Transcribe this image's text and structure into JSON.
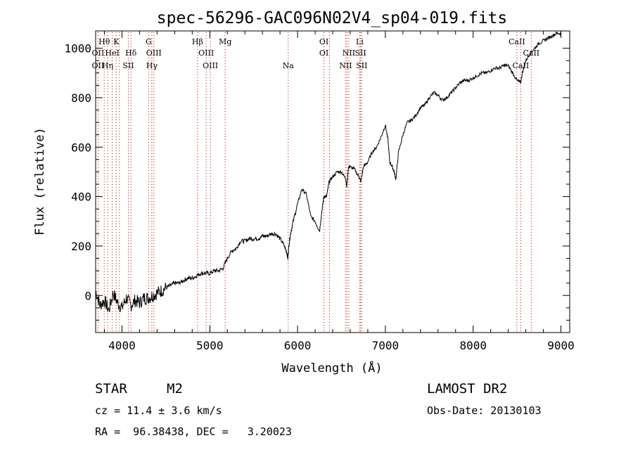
{
  "chart_data": {
    "type": "line",
    "title": "spec-56296-GAC096N02V4_sp04-019.fits",
    "xlabel": "Wavelength (Å)",
    "ylabel": "Flux (relative)",
    "xlim": [
      3700,
      9100
    ],
    "ylim": [
      -150,
      1070
    ],
    "xticks": [
      4000,
      5000,
      6000,
      7000,
      8000,
      9000
    ],
    "yticks": [
      0,
      200,
      400,
      600,
      800,
      1000
    ],
    "grid": false,
    "series": [
      {
        "values_note": "",
        "x": [
          3700,
          3750,
          3800,
          3850,
          3900,
          3950,
          4000,
          4050,
          4100,
          4150,
          4200,
          4250,
          4300,
          4350,
          4400,
          4450,
          4500,
          4550,
          4600,
          4650,
          4700,
          4750,
          4800,
          4850,
          4900,
          4950,
          5000,
          5050,
          5100,
          5150,
          5200,
          5250,
          5300,
          5350,
          5400,
          5450,
          5500,
          5550,
          5600,
          5650,
          5700,
          5750,
          5800,
          5850,
          5880,
          5890,
          5900,
          5920,
          5950,
          6000,
          6050,
          6100,
          6150,
          6200,
          6250,
          6280,
          6300,
          6330,
          6360,
          6400,
          6450,
          6500,
          6550,
          6560,
          6580,
          6600,
          6650,
          6700,
          6720,
          6750,
          6800,
          6850,
          6900,
          6950,
          7000,
          7030,
          7050,
          7080,
          7100,
          7120,
          7150,
          7200,
          7250,
          7300,
          7350,
          7400,
          7450,
          7500,
          7550,
          7600,
          7650,
          7700,
          7750,
          7800,
          7850,
          7900,
          7950,
          8000,
          8050,
          8100,
          8150,
          8200,
          8250,
          8300,
          8350,
          8400,
          8450,
          8500,
          8540,
          8560,
          8600,
          8650,
          8700,
          8750,
          8800,
          8850,
          8900,
          8950,
          9000
        ],
        "y": [
          20,
          -40,
          -20,
          -60,
          10,
          -30,
          -50,
          -10,
          -40,
          -20,
          -30,
          -10,
          -10,
          0,
          10,
          20,
          30,
          40,
          50,
          50,
          60,
          70,
          70,
          80,
          90,
          90,
          90,
          100,
          100,
          110,
          150,
          180,
          190,
          220,
          220,
          230,
          230,
          230,
          240,
          240,
          250,
          250,
          230,
          200,
          170,
          150,
          200,
          250,
          300,
          370,
          430,
          410,
          320,
          300,
          260,
          350,
          400,
          400,
          460,
          480,
          500,
          500,
          470,
          440,
          520,
          520,
          510,
          480,
          460,
          520,
          540,
          580,
          600,
          640,
          690,
          630,
          540,
          520,
          500,
          470,
          580,
          650,
          700,
          710,
          730,
          760,
          770,
          800,
          820,
          810,
          790,
          800,
          820,
          840,
          860,
          870,
          870,
          880,
          890,
          900,
          900,
          910,
          920,
          920,
          930,
          930,
          900,
          870,
          860,
          900,
          950,
          980,
          1000,
          1020,
          1030,
          1040,
          1050,
          1060,
          1060
        ]
      }
    ],
    "line_labels_top": [
      {
        "text": "Hθ",
        "x": 3798
      },
      {
        "text": "K",
        "x": 3934
      },
      {
        "text": "G",
        "x": 4304
      },
      {
        "text": "Hβ",
        "x": 4861
      },
      {
        "text": "Mg",
        "x": 5175
      },
      {
        "text": "OI",
        "x": 6300
      },
      {
        "text": "Li",
        "x": 6708
      },
      {
        "text": "CaII",
        "x": 8498
      }
    ],
    "line_labels_mid": [
      {
        "text": "OII",
        "x": 3727
      },
      {
        "text": "HeI",
        "x": 3889
      },
      {
        "text": "Hδ",
        "x": 4102
      },
      {
        "text": "OIII",
        "x": 4363
      },
      {
        "text": "OIII",
        "x": 4959
      },
      {
        "text": "OI",
        "x": 6300
      },
      {
        "text": "NII",
        "x": 6584
      },
      {
        "text": "SII",
        "x": 6717
      },
      {
        "text": "CaII",
        "x": 8662
      }
    ],
    "line_labels_low": [
      {
        "text": "OII",
        "x": 3727
      },
      {
        "text": "Hη",
        "x": 3835
      },
      {
        "text": "SII",
        "x": 4072
      },
      {
        "text": "Hγ",
        "x": 4340
      },
      {
        "text": "OIII",
        "x": 5007
      },
      {
        "text": "Na",
        "x": 5893
      },
      {
        "text": "NII",
        "x": 6548
      },
      {
        "text": "SII",
        "x": 6731
      },
      {
        "text": "CaII",
        "x": 8542
      }
    ],
    "marker_lines": [
      3727,
      3798,
      3835,
      3889,
      3934,
      3970,
      4072,
      4102,
      4304,
      4340,
      4363,
      4861,
      4959,
      5007,
      5175,
      5893,
      6300,
      6364,
      6548,
      6563,
      6584,
      6708,
      6717,
      6731,
      8498,
      8542,
      8662
    ],
    "colors": {
      "axis": "#000000",
      "spectrum": "#000000",
      "marker": "#cc0000"
    }
  },
  "info": {
    "object_type": "STAR",
    "subclass": "M2",
    "survey": "LAMOST DR2",
    "velocity": "cz = 11.4 ± 3.6 km/s",
    "obs_date": "Obs-Date: 20130103",
    "coords": "RA =  96.38438, DEC =   3.20023"
  }
}
